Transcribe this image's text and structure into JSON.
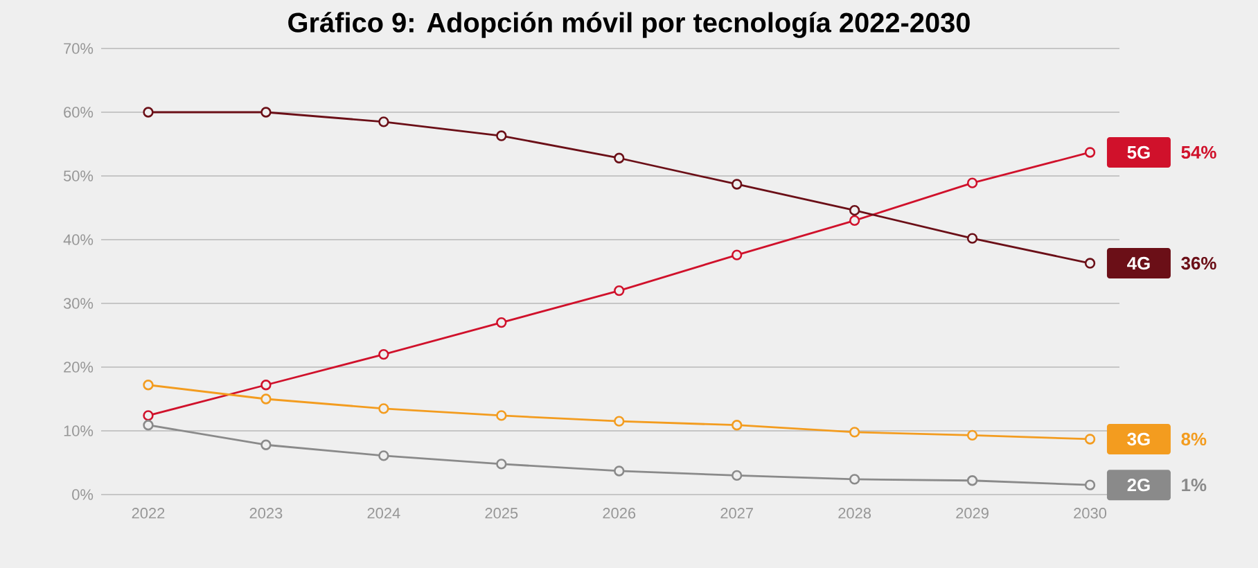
{
  "chart_data": {
    "type": "line",
    "title": "Gráfico 9: Adopción móvil por tecnología 2022-2030",
    "x": [
      2022,
      2023,
      2024,
      2025,
      2026,
      2027,
      2028,
      2029,
      2030
    ],
    "xlim": [
      2021.6,
      2030.25
    ],
    "xticks": [
      2022,
      2023,
      2024,
      2025,
      2026,
      2027,
      2028,
      2029,
      2030
    ],
    "ylim": [
      0,
      70
    ],
    "yticks": [
      {
        "value": 0,
        "label": "0%"
      },
      {
        "value": 10,
        "label": "10%"
      },
      {
        "value": 20,
        "label": "20%"
      },
      {
        "value": 30,
        "label": "30%"
      },
      {
        "value": 40,
        "label": "40%"
      },
      {
        "value": 50,
        "label": "50%"
      },
      {
        "value": 60,
        "label": "60%"
      },
      {
        "value": 70,
        "label": "70%"
      }
    ],
    "grid": "y",
    "marker": "circle",
    "line_style": "solid",
    "legend": false,
    "series": [
      {
        "name": "5G",
        "color": "#d0112b",
        "values": [
          12.4,
          17.2,
          22.0,
          27.0,
          32.0,
          37.6,
          43.0,
          48.9,
          53.7
        ]
      },
      {
        "name": "4G",
        "color": "#6b0f17",
        "values": [
          60.0,
          60.0,
          58.5,
          56.3,
          52.8,
          48.7,
          44.6,
          40.2,
          36.3
        ]
      },
      {
        "name": "3G",
        "color": "#f39c1f",
        "values": [
          17.2,
          15.0,
          13.5,
          12.4,
          11.5,
          10.9,
          9.8,
          9.3,
          8.7
        ]
      },
      {
        "name": "2G",
        "color": "#8a8a8a",
        "values": [
          10.9,
          7.8,
          6.1,
          4.8,
          3.7,
          3.0,
          2.4,
          2.2,
          1.5
        ]
      }
    ],
    "annotations": [
      "54%",
      "36%",
      "8%",
      "1%"
    ]
  }
}
